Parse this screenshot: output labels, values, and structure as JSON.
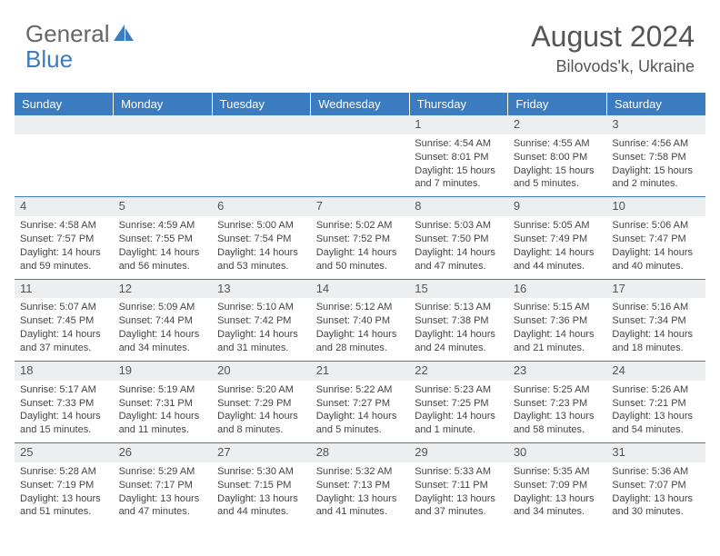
{
  "brand": {
    "part1": "General",
    "part2": "Blue"
  },
  "title": "August 2024",
  "location": "Bilovods'k, Ukraine",
  "colors": {
    "accent": "#3b7bbf",
    "header_text": "#ffffff",
    "daynum_bg": "#eceeef",
    "text": "#444444",
    "border": "#3b7bbf"
  },
  "weekdays": [
    "Sunday",
    "Monday",
    "Tuesday",
    "Wednesday",
    "Thursday",
    "Friday",
    "Saturday"
  ],
  "weeks": [
    [
      null,
      null,
      null,
      null,
      {
        "n": "1",
        "sunrise": "Sunrise: 4:54 AM",
        "sunset": "Sunset: 8:01 PM",
        "daylight": "Daylight: 15 hours and 7 minutes."
      },
      {
        "n": "2",
        "sunrise": "Sunrise: 4:55 AM",
        "sunset": "Sunset: 8:00 PM",
        "daylight": "Daylight: 15 hours and 5 minutes."
      },
      {
        "n": "3",
        "sunrise": "Sunrise: 4:56 AM",
        "sunset": "Sunset: 7:58 PM",
        "daylight": "Daylight: 15 hours and 2 minutes."
      }
    ],
    [
      {
        "n": "4",
        "sunrise": "Sunrise: 4:58 AM",
        "sunset": "Sunset: 7:57 PM",
        "daylight": "Daylight: 14 hours and 59 minutes."
      },
      {
        "n": "5",
        "sunrise": "Sunrise: 4:59 AM",
        "sunset": "Sunset: 7:55 PM",
        "daylight": "Daylight: 14 hours and 56 minutes."
      },
      {
        "n": "6",
        "sunrise": "Sunrise: 5:00 AM",
        "sunset": "Sunset: 7:54 PM",
        "daylight": "Daylight: 14 hours and 53 minutes."
      },
      {
        "n": "7",
        "sunrise": "Sunrise: 5:02 AM",
        "sunset": "Sunset: 7:52 PM",
        "daylight": "Daylight: 14 hours and 50 minutes."
      },
      {
        "n": "8",
        "sunrise": "Sunrise: 5:03 AM",
        "sunset": "Sunset: 7:50 PM",
        "daylight": "Daylight: 14 hours and 47 minutes."
      },
      {
        "n": "9",
        "sunrise": "Sunrise: 5:05 AM",
        "sunset": "Sunset: 7:49 PM",
        "daylight": "Daylight: 14 hours and 44 minutes."
      },
      {
        "n": "10",
        "sunrise": "Sunrise: 5:06 AM",
        "sunset": "Sunset: 7:47 PM",
        "daylight": "Daylight: 14 hours and 40 minutes."
      }
    ],
    [
      {
        "n": "11",
        "sunrise": "Sunrise: 5:07 AM",
        "sunset": "Sunset: 7:45 PM",
        "daylight": "Daylight: 14 hours and 37 minutes."
      },
      {
        "n": "12",
        "sunrise": "Sunrise: 5:09 AM",
        "sunset": "Sunset: 7:44 PM",
        "daylight": "Daylight: 14 hours and 34 minutes."
      },
      {
        "n": "13",
        "sunrise": "Sunrise: 5:10 AM",
        "sunset": "Sunset: 7:42 PM",
        "daylight": "Daylight: 14 hours and 31 minutes."
      },
      {
        "n": "14",
        "sunrise": "Sunrise: 5:12 AM",
        "sunset": "Sunset: 7:40 PM",
        "daylight": "Daylight: 14 hours and 28 minutes."
      },
      {
        "n": "15",
        "sunrise": "Sunrise: 5:13 AM",
        "sunset": "Sunset: 7:38 PM",
        "daylight": "Daylight: 14 hours and 24 minutes."
      },
      {
        "n": "16",
        "sunrise": "Sunrise: 5:15 AM",
        "sunset": "Sunset: 7:36 PM",
        "daylight": "Daylight: 14 hours and 21 minutes."
      },
      {
        "n": "17",
        "sunrise": "Sunrise: 5:16 AM",
        "sunset": "Sunset: 7:34 PM",
        "daylight": "Daylight: 14 hours and 18 minutes."
      }
    ],
    [
      {
        "n": "18",
        "sunrise": "Sunrise: 5:17 AM",
        "sunset": "Sunset: 7:33 PM",
        "daylight": "Daylight: 14 hours and 15 minutes."
      },
      {
        "n": "19",
        "sunrise": "Sunrise: 5:19 AM",
        "sunset": "Sunset: 7:31 PM",
        "daylight": "Daylight: 14 hours and 11 minutes."
      },
      {
        "n": "20",
        "sunrise": "Sunrise: 5:20 AM",
        "sunset": "Sunset: 7:29 PM",
        "daylight": "Daylight: 14 hours and 8 minutes."
      },
      {
        "n": "21",
        "sunrise": "Sunrise: 5:22 AM",
        "sunset": "Sunset: 7:27 PM",
        "daylight": "Daylight: 14 hours and 5 minutes."
      },
      {
        "n": "22",
        "sunrise": "Sunrise: 5:23 AM",
        "sunset": "Sunset: 7:25 PM",
        "daylight": "Daylight: 14 hours and 1 minute."
      },
      {
        "n": "23",
        "sunrise": "Sunrise: 5:25 AM",
        "sunset": "Sunset: 7:23 PM",
        "daylight": "Daylight: 13 hours and 58 minutes."
      },
      {
        "n": "24",
        "sunrise": "Sunrise: 5:26 AM",
        "sunset": "Sunset: 7:21 PM",
        "daylight": "Daylight: 13 hours and 54 minutes."
      }
    ],
    [
      {
        "n": "25",
        "sunrise": "Sunrise: 5:28 AM",
        "sunset": "Sunset: 7:19 PM",
        "daylight": "Daylight: 13 hours and 51 minutes."
      },
      {
        "n": "26",
        "sunrise": "Sunrise: 5:29 AM",
        "sunset": "Sunset: 7:17 PM",
        "daylight": "Daylight: 13 hours and 47 minutes."
      },
      {
        "n": "27",
        "sunrise": "Sunrise: 5:30 AM",
        "sunset": "Sunset: 7:15 PM",
        "daylight": "Daylight: 13 hours and 44 minutes."
      },
      {
        "n": "28",
        "sunrise": "Sunrise: 5:32 AM",
        "sunset": "Sunset: 7:13 PM",
        "daylight": "Daylight: 13 hours and 41 minutes."
      },
      {
        "n": "29",
        "sunrise": "Sunrise: 5:33 AM",
        "sunset": "Sunset: 7:11 PM",
        "daylight": "Daylight: 13 hours and 37 minutes."
      },
      {
        "n": "30",
        "sunrise": "Sunrise: 5:35 AM",
        "sunset": "Sunset: 7:09 PM",
        "daylight": "Daylight: 13 hours and 34 minutes."
      },
      {
        "n": "31",
        "sunrise": "Sunrise: 5:36 AM",
        "sunset": "Sunset: 7:07 PM",
        "daylight": "Daylight: 13 hours and 30 minutes."
      }
    ]
  ]
}
